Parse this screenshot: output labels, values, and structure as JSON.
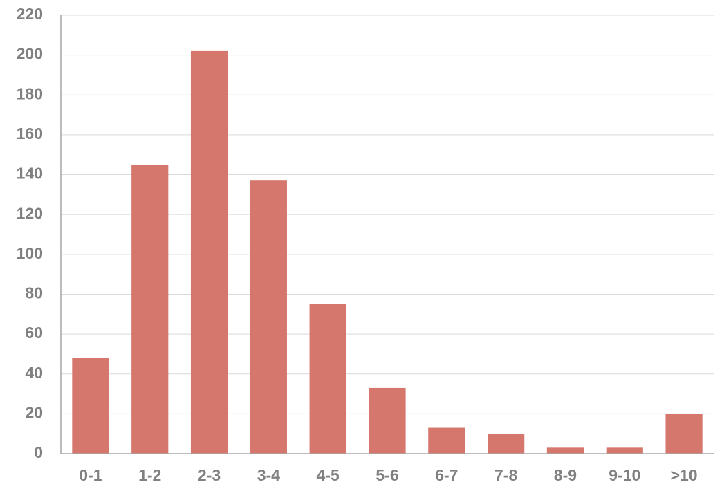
{
  "chart_data": {
    "type": "bar",
    "categories": [
      "0-1",
      "1-2",
      "2-3",
      "3-4",
      "4-5",
      "5-6",
      "6-7",
      "7-8",
      "8-9",
      "9-10",
      ">10"
    ],
    "values": [
      48,
      145,
      202,
      137,
      75,
      33,
      13,
      10,
      3,
      3,
      20
    ],
    "color": "#d6776d",
    "ylim": [
      0,
      220
    ],
    "yticks": [
      0,
      20,
      40,
      60,
      80,
      100,
      120,
      140,
      160,
      180,
      200,
      220
    ],
    "grid": true
  }
}
